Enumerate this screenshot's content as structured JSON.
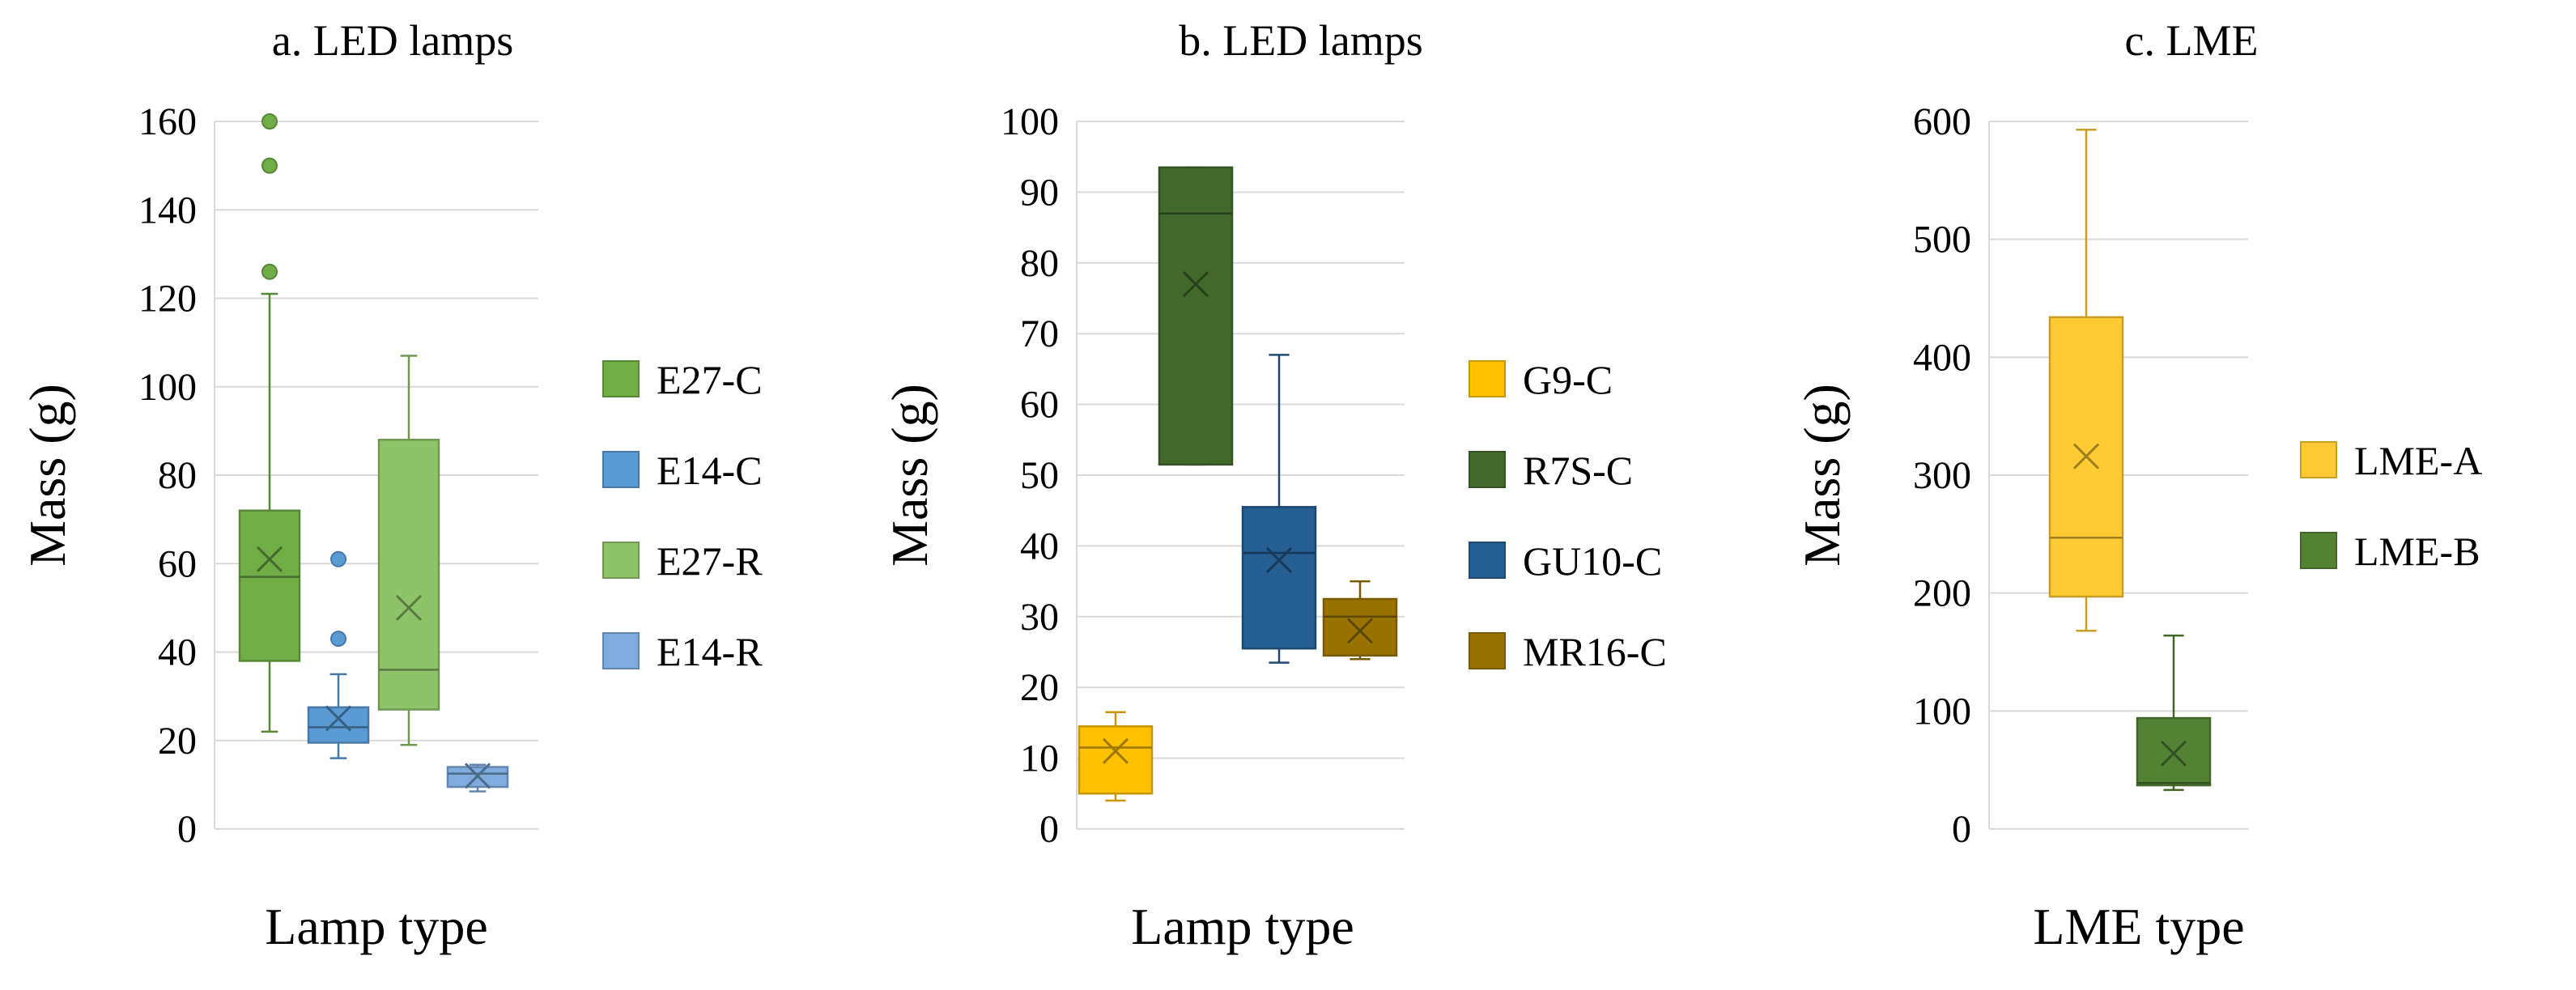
{
  "chart_data": [
    {
      "type": "box",
      "title": "a. LED lamps",
      "xlabel": "Lamp type",
      "ylabel": "Mass (g)",
      "ylim": [
        0,
        160
      ],
      "ytick_step": 20,
      "yticks": [
        "0",
        "20",
        "40",
        "60",
        "80",
        "100",
        "120",
        "140",
        "160"
      ],
      "grid": true,
      "legend": "right",
      "series": [
        {
          "name": "E27-C",
          "color": "#70AD47",
          "min": 22,
          "q1": 38,
          "median": 57,
          "q3": 72,
          "max": 121,
          "mean": 61,
          "outliers": [
            126,
            150,
            160
          ]
        },
        {
          "name": "E14-C",
          "color": "#5B9BD5",
          "min": 16,
          "q1": 19.5,
          "median": 23,
          "q3": 27.5,
          "max": 35,
          "mean": 25,
          "outliers": [
            43,
            61
          ]
        },
        {
          "name": "E27-R",
          "color": "#8FC369",
          "min": 19,
          "q1": 27,
          "median": 36,
          "q3": 88,
          "max": 107,
          "mean": 50,
          "outliers": []
        },
        {
          "name": "E14-R",
          "color": "#7EACDF",
          "min": 8.5,
          "q1": 9.5,
          "median": 12.5,
          "q3": 14,
          "max": 14.5,
          "mean": 12,
          "outliers": []
        }
      ]
    },
    {
      "type": "box",
      "title": "b. LED lamps",
      "xlabel": "Lamp type",
      "ylabel": "Mass (g)",
      "ylim": [
        0,
        100
      ],
      "ytick_step": 10,
      "yticks": [
        "0",
        "10",
        "20",
        "30",
        "40",
        "50",
        "60",
        "70",
        "80",
        "90",
        "100"
      ],
      "grid": true,
      "legend": "right",
      "series": [
        {
          "name": "G9-C",
          "color": "#FFC000",
          "min": 4,
          "q1": 5,
          "median": 11.5,
          "q3": 14.5,
          "max": 16.5,
          "mean": 11,
          "outliers": []
        },
        {
          "name": "R7S-C",
          "color": "#43682B",
          "min": 51.5,
          "q1": 51.5,
          "median": 87,
          "q3": 93.5,
          "max": 93.5,
          "mean": 77,
          "outliers": []
        },
        {
          "name": "GU10-C",
          "color": "#255E91",
          "min": 23.5,
          "q1": 25.5,
          "median": 39,
          "q3": 45.5,
          "max": 67,
          "mean": 38,
          "outliers": []
        },
        {
          "name": "MR16-C",
          "color": "#997300",
          "min": 24,
          "q1": 24.5,
          "median": 30,
          "q3": 32.5,
          "max": 35,
          "mean": 28,
          "outliers": []
        }
      ]
    },
    {
      "type": "box",
      "title": "c. LME",
      "xlabel": "LME type",
      "ylabel": "Mass (g)",
      "ylim": [
        0,
        600
      ],
      "ytick_step": 100,
      "yticks": [
        "0",
        "100",
        "200",
        "300",
        "400",
        "500",
        "600"
      ],
      "grid": true,
      "legend": "right",
      "series": [
        {
          "name": "LME-A",
          "color": "#FFCB32",
          "min": 168,
          "q1": 197,
          "median": 247,
          "q3": 434,
          "max": 593,
          "mean": 316,
          "outliers": []
        },
        {
          "name": "LME-B",
          "color": "#548235",
          "min": 33,
          "q1": 37,
          "median": 39,
          "q3": 94,
          "max": 164,
          "mean": 64,
          "outliers": []
        }
      ]
    }
  ]
}
